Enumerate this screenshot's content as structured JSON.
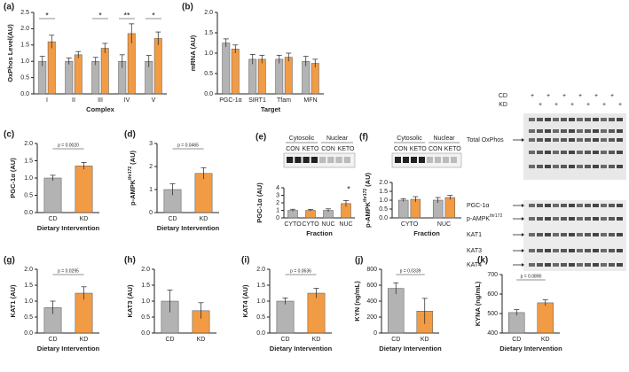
{
  "chart_data": [
    {
      "type": "bar",
      "panel": "(a)",
      "ylabel": "OxPhos Level(AU)",
      "xlabel": "Complex",
      "categories": [
        "I",
        "II",
        "III",
        "IV",
        "V"
      ],
      "series": [
        {
          "color": "#a6a6a6",
          "values": [
            1.0,
            1.0,
            1.0,
            1.0,
            1.0
          ],
          "errors": [
            0.15,
            0.1,
            0.12,
            0.2,
            0.18
          ]
        },
        {
          "color": "#f08a24",
          "values": [
            1.6,
            1.2,
            1.4,
            1.85,
            1.7
          ],
          "errors": [
            0.2,
            0.1,
            0.15,
            0.3,
            0.2
          ]
        }
      ],
      "significance": [
        "*",
        null,
        "*",
        "**",
        "*"
      ],
      "ylim": [
        0,
        2.5
      ],
      "yticks": [
        {
          "value": 0,
          "label": "0.0"
        },
        0.5,
        {
          "value": 1,
          "label": "1.0"
        },
        1.5,
        {
          "value": 2,
          "label": "2.0"
        },
        2.5
      ]
    },
    {
      "type": "bar",
      "panel": "(b)",
      "ylabel": "mRNA (AU)",
      "xlabel": "Target",
      "categories": [
        "PGC-1α",
        "SIRT1",
        "Tfam",
        "MFN"
      ],
      "series": [
        {
          "color": "#a6a6a6",
          "values": [
            1.25,
            0.85,
            0.85,
            0.8
          ],
          "errors": [
            0.1,
            0.12,
            0.1,
            0.12
          ]
        },
        {
          "color": "#f08a24",
          "values": [
            1.1,
            0.85,
            0.9,
            0.75
          ],
          "errors": [
            0.1,
            0.1,
            0.1,
            0.1
          ]
        }
      ],
      "ylim": [
        0,
        2
      ],
      "yticks": [
        {
          "value": 0,
          "label": "0.0"
        },
        0.5,
        {
          "value": 1,
          "label": "1.0"
        },
        1.5,
        {
          "value": 2,
          "label": "2.0"
        }
      ]
    },
    {
      "type": "bar",
      "panel": "(c)",
      "ylabel": "PGC-1α (AU)",
      "xlabel": "Dietary Intervention",
      "categories": [
        "CD",
        "KD"
      ],
      "values": [
        1.0,
        1.35
      ],
      "errors": [
        0.08,
        0.1
      ],
      "colors": [
        "#a6a6a6",
        "#f08a24"
      ],
      "annotation": "p = 0.0020",
      "ylim": [
        0,
        2
      ],
      "yticks": [
        {
          "value": 0,
          "label": "0.0"
        },
        0.5,
        {
          "value": 1,
          "label": "1.0"
        },
        1.5,
        {
          "value": 2,
          "label": "2.0"
        }
      ]
    },
    {
      "type": "bar",
      "panel": "(d)",
      "ylabel": "p-AMPK",
      "ylabel_sup": "thr172",
      "ylabel_unit": "(AU)",
      "xlabel": "Dietary Intervention",
      "categories": [
        "CD",
        "KD"
      ],
      "values": [
        1.0,
        1.7
      ],
      "errors": [
        0.25,
        0.25
      ],
      "colors": [
        "#a6a6a6",
        "#f08a24"
      ],
      "annotation": "p = 0.0465",
      "ylim": [
        0,
        3
      ],
      "yticks": [
        0,
        1,
        2,
        3
      ]
    },
    {
      "type": "bar",
      "panel": "(e)",
      "ylabel": "PGC-1α (AU)",
      "xlabel": "Fraction",
      "blot_headers": [
        "Cytosolic",
        "Nuclear"
      ],
      "blot_lanes": [
        "CON",
        "KETO",
        "CON",
        "KETO"
      ],
      "categories": [
        "CYTO",
        "CYTO",
        "NUC",
        "NUC"
      ],
      "values": [
        1.0,
        1.0,
        1.0,
        1.9
      ],
      "errors": [
        0.15,
        0.12,
        0.2,
        0.4
      ],
      "colors": [
        "#a6a6a6",
        "#f08a24",
        "#a6a6a6",
        "#f08a24"
      ],
      "significance": [
        null,
        null,
        null,
        "*"
      ],
      "ylim": [
        0,
        4
      ],
      "yticks": [
        0,
        1,
        2,
        3,
        4
      ]
    },
    {
      "type": "bar",
      "panel": "(f)",
      "ylabel": "p-AMPK",
      "ylabel_sup": "thr172",
      "ylabel_unit": "(AU)",
      "xlabel": "Fraction",
      "blot_headers": [
        "Cytosolic",
        "Nuclear"
      ],
      "blot_lanes": [
        "CON",
        "KETO",
        "CON",
        "KETO"
      ],
      "categories": [
        "CYTO",
        "NUC"
      ],
      "series": [
        {
          "color": "#a6a6a6",
          "values": [
            1.0,
            1.0
          ],
          "errors": [
            0.08,
            0.15
          ]
        },
        {
          "color": "#f08a24",
          "values": [
            1.05,
            1.15
          ],
          "errors": [
            0.15,
            0.12
          ]
        }
      ],
      "ylim": [
        0,
        2
      ],
      "yticks": [
        {
          "value": 0,
          "label": "0.0"
        },
        0.5,
        {
          "value": 1,
          "label": "1.0"
        },
        1.5,
        {
          "value": 2,
          "label": "2.0"
        }
      ]
    },
    {
      "type": "bar",
      "panel": "(g)",
      "ylabel": "KAT1 (AU)",
      "xlabel": "Dietary Intervention",
      "categories": [
        "CD",
        "KD"
      ],
      "values": [
        0.8,
        1.25
      ],
      "errors": [
        0.2,
        0.2
      ],
      "colors": [
        "#a6a6a6",
        "#f08a24"
      ],
      "annotation": "p = 0.0295",
      "ylim": [
        0,
        2
      ],
      "yticks": [
        {
          "value": 0,
          "label": "0.0"
        },
        0.5,
        {
          "value": 1,
          "label": "1.0"
        },
        1.5,
        {
          "value": 2,
          "label": "2.0"
        }
      ]
    },
    {
      "type": "bar",
      "panel": "(h)",
      "ylabel": "KAT3 (AU)",
      "xlabel": "",
      "categories": [
        "CD",
        "KD"
      ],
      "values": [
        1.0,
        0.7
      ],
      "errors": [
        0.35,
        0.25
      ],
      "colors": [
        "#a6a6a6",
        "#f08a24"
      ],
      "ylim": [
        0,
        2
      ],
      "yticks": [
        {
          "value": 0,
          "label": "0.0"
        },
        0.5,
        {
          "value": 1,
          "label": "1.0"
        },
        1.5,
        {
          "value": 2,
          "label": "2.0"
        }
      ]
    },
    {
      "type": "bar",
      "panel": "(i)",
      "ylabel": "KAT4 (AU)",
      "xlabel": "Dietary Intervention",
      "categories": [
        "CD",
        "KD"
      ],
      "values": [
        1.0,
        1.25
      ],
      "errors": [
        0.1,
        0.15
      ],
      "colors": [
        "#a6a6a6",
        "#f08a24"
      ],
      "annotation": "p = 0.0636",
      "ylim": [
        0,
        2
      ],
      "yticks": [
        {
          "value": 0,
          "label": "0.0"
        },
        0.5,
        {
          "value": 1,
          "label": "1.0"
        },
        1.5,
        {
          "value": 2,
          "label": "2.0"
        }
      ]
    },
    {
      "type": "bar",
      "panel": "(j)",
      "ylabel": "KYN (ng/mL)",
      "xlabel": "Dietary Intervention",
      "categories": [
        "CD",
        "KD"
      ],
      "values": [
        560,
        275
      ],
      "errors": [
        70,
        160
      ],
      "colors": [
        "#a6a6a6",
        "#f08a24"
      ],
      "annotation": "p = 0.0339",
      "ylim": [
        0,
        800
      ],
      "yticks": [
        0,
        200,
        400,
        600,
        800
      ]
    },
    {
      "type": "bar",
      "panel": "(k)",
      "ylabel": "KYNA (ng/mL)",
      "xlabel": "Dietary Intervention",
      "categories": [
        "CD",
        "KD"
      ],
      "values": [
        505,
        555
      ],
      "errors": [
        15,
        15
      ],
      "colors": [
        "#a6a6a6",
        "#f08a24"
      ],
      "annotation": "p = 0.0890",
      "ylim": [
        400,
        700
      ],
      "yticks": [
        400,
        500,
        600,
        700
      ]
    }
  ],
  "blot_panel": {
    "rows": [
      {
        "label": "CD",
        "signs": [
          "+",
          null,
          "+",
          null,
          "+",
          null,
          "+",
          null,
          "+",
          null,
          "+",
          null
        ]
      },
      {
        "label": "KD",
        "signs": [
          null,
          "+",
          null,
          "+",
          null,
          "+",
          null,
          "+",
          null,
          "+",
          null,
          "+"
        ]
      }
    ],
    "bands": [
      {
        "label": "Total OxPhos"
      },
      {
        "label": "PGC-1α"
      },
      {
        "label": "p-AMPK",
        "sup": "thr172"
      },
      {
        "label": "KAT1"
      },
      {
        "label": "KAT3"
      },
      {
        "label": "KAT4"
      }
    ]
  }
}
